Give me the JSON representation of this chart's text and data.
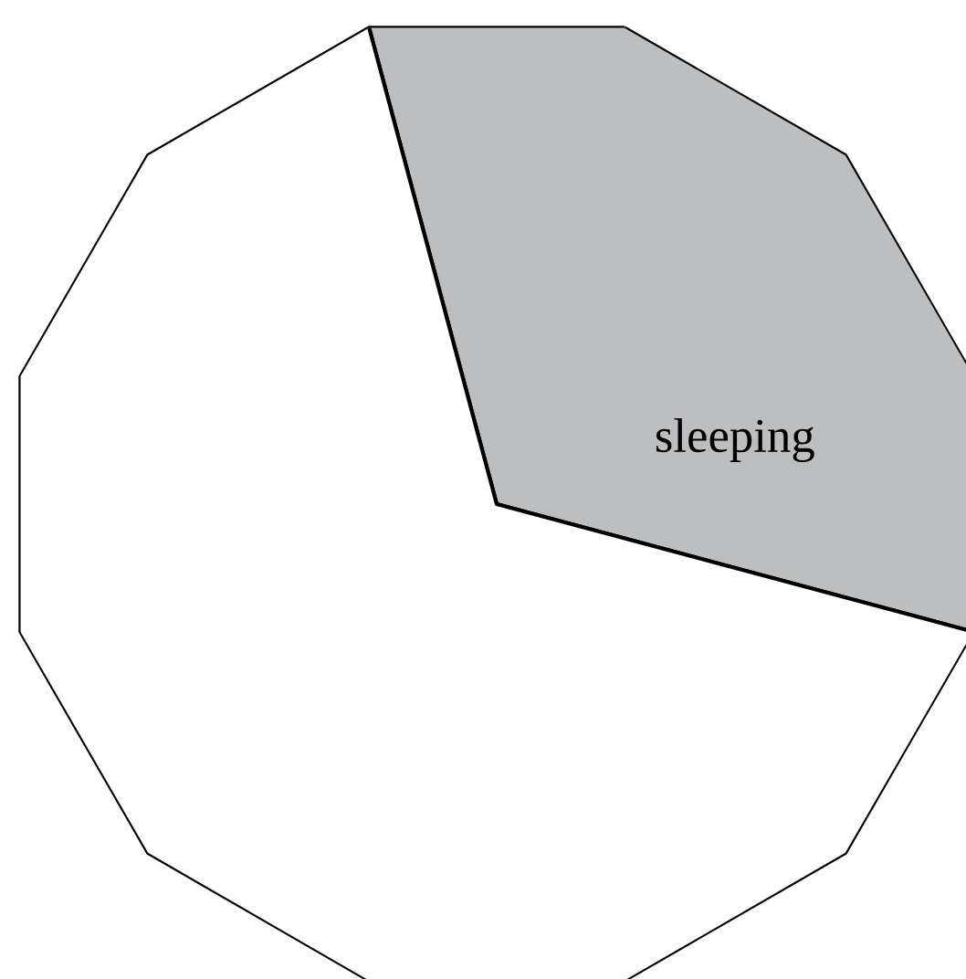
{
  "chart_data": {
    "type": "pie",
    "categories": [
      "sleeping",
      null
    ],
    "values": [
      33.33,
      66.67
    ],
    "colors": [
      "#bcbec0",
      "#ffffff"
    ]
  }
}
